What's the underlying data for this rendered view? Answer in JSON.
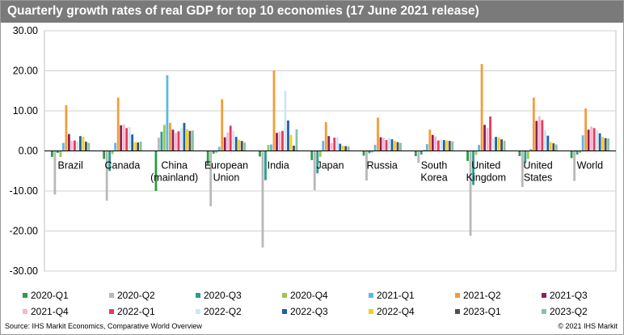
{
  "title": "Quarterly growth rates of real GDP for top 10 economies (17 June 2021 release)",
  "source": "Source: IHS Markit Economics,  Comparative World Overview",
  "copyright": "© 2021 IHS Markit",
  "chart_data": {
    "type": "bar",
    "title": "Quarterly growth rates of real GDP for top 10 economies (17 June 2021 release)",
    "ylim": [
      -30,
      30
    ],
    "yticks": [
      "30.00",
      "20.00",
      "10.00",
      "0.00",
      "-10.00",
      "-20.00",
      "-30.00"
    ],
    "grid": true,
    "legend_position": "bottom",
    "categories": [
      [
        "Brazil"
      ],
      [
        "Canada"
      ],
      [
        "China",
        "(mainland)"
      ],
      [
        "European",
        "Union"
      ],
      [
        "India"
      ],
      [
        "Japan"
      ],
      [
        "Russia"
      ],
      [
        "South",
        "Korea"
      ],
      [
        "United",
        "Kingdom"
      ],
      [
        "United",
        "States"
      ],
      [
        "World"
      ]
    ],
    "series": [
      {
        "name": "2020-Q1",
        "color": "#2e9b48",
        "values": [
          -1.5,
          -2.0,
          -10.0,
          -3.4,
          -1.4,
          -2.3,
          -1.2,
          -1.3,
          -2.5,
          -1.3,
          -1.8
        ]
      },
      {
        "name": "2020-Q2",
        "color": "#b8b8b8",
        "values": [
          -10.9,
          -12.4,
          3.3,
          -13.8,
          -24.1,
          -9.8,
          -7.4,
          -3.0,
          -21.2,
          -9.0,
          -7.5
        ]
      },
      {
        "name": "2020-Q3",
        "color": "#2a9d8f",
        "values": [
          -0.5,
          -5.0,
          4.8,
          -0.7,
          -7.3,
          -5.6,
          -0.6,
          -0.9,
          -8.5,
          -3.0,
          -0.9
        ]
      },
      {
        "name": "2020-Q4",
        "color": "#9bc94b",
        "values": [
          -1.5,
          -0.8,
          6.5,
          -0.5,
          1.5,
          -1.5,
          -0.4,
          0.3,
          -1.0,
          -2.0,
          -0.5
        ]
      },
      {
        "name": "2021-Q1",
        "color": "#5bb8e6",
        "values": [
          2.0,
          2.0,
          18.9,
          1.0,
          1.6,
          2.5,
          1.5,
          1.7,
          1.5,
          0.5,
          3.9
        ]
      },
      {
        "name": "2021-Q2",
        "color": "#f29d38",
        "values": [
          11.4,
          13.3,
          7.0,
          12.9,
          20.1,
          7.2,
          8.3,
          5.3,
          21.7,
          13.3,
          10.6
        ]
      },
      {
        "name": "2021-Q3",
        "color": "#8e1f5c",
        "values": [
          4.2,
          6.4,
          5.3,
          3.4,
          4.5,
          3.7,
          3.4,
          4.0,
          6.5,
          7.5,
          5.3
        ]
      },
      {
        "name": "2021-Q4",
        "color": "#f4b8c8",
        "values": [
          2.5,
          6.6,
          4.5,
          4.6,
          4.8,
          2.0,
          3.3,
          3.6,
          5.7,
          8.7,
          6.1
        ]
      },
      {
        "name": "2022-Q1",
        "color": "#e8385e",
        "values": [
          2.6,
          5.7,
          4.9,
          6.3,
          5.0,
          3.3,
          2.7,
          2.6,
          8.6,
          7.7,
          5.7
        ]
      },
      {
        "name": "2022-Q2",
        "color": "#cce6f4",
        "values": [
          2.3,
          6.0,
          5.7,
          5.0,
          15.0,
          3.4,
          3.2,
          2.9,
          3.2,
          5.2,
          5.2
        ]
      },
      {
        "name": "2022-Q3",
        "color": "#1f5fa8",
        "values": [
          3.7,
          4.1,
          7.0,
          3.5,
          7.6,
          1.8,
          2.9,
          2.7,
          3.5,
          3.8,
          4.4
        ]
      },
      {
        "name": "2022-Q4",
        "color": "#f4d015",
        "values": [
          3.5,
          2.2,
          5.4,
          2.8,
          4.0,
          1.3,
          2.5,
          2.6,
          3.4,
          2.2,
          3.5
        ]
      },
      {
        "name": "2023-Q1",
        "color": "#4f4f4f",
        "values": [
          2.3,
          2.1,
          5.0,
          2.5,
          1.3,
          1.2,
          2.2,
          2.5,
          2.9,
          1.9,
          3.2
        ]
      },
      {
        "name": "2023-Q2",
        "color": "#8cbfaa",
        "values": [
          2.0,
          2.3,
          5.1,
          2.1,
          5.4,
          1.1,
          2.0,
          2.4,
          2.5,
          1.6,
          3.1
        ]
      }
    ]
  }
}
